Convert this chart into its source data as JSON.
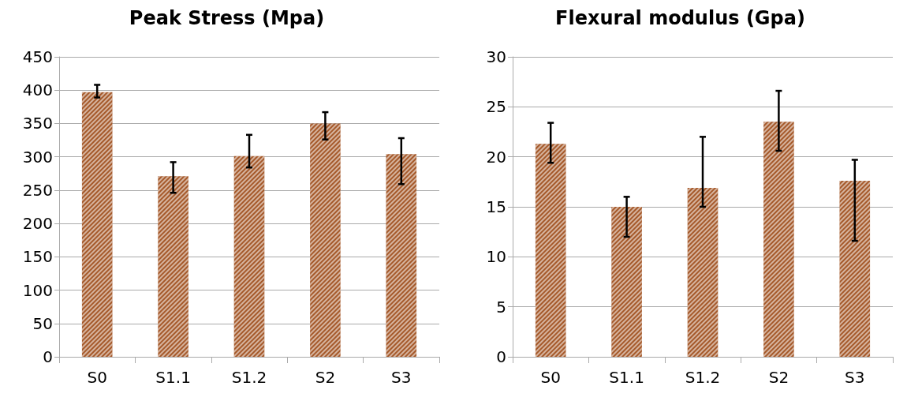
{
  "chart_data": [
    {
      "type": "bar",
      "title": "Peak Stress (Mpa)",
      "categories": [
        "S0",
        "S1.1",
        "S1.2",
        "S2",
        "S3"
      ],
      "series": [
        {
          "color": "#a5592a",
          "values": [
            397,
            271,
            301,
            350,
            304
          ],
          "errors": [
            [
              389,
              408
            ],
            [
              246,
              292
            ],
            [
              284,
              333
            ],
            [
              326,
              367
            ],
            [
              259,
              328
            ]
          ]
        }
      ],
      "ylim": [
        0,
        450
      ],
      "yticks": [
        0,
        50,
        100,
        150,
        200,
        250,
        300,
        350,
        400,
        450
      ],
      "grid": "y"
    },
    {
      "type": "bar",
      "title": "Flexural modulus (Gpa)",
      "categories": [
        "S0",
        "S1.1",
        "S1.2",
        "S2",
        "S3"
      ],
      "series": [
        {
          "color": "#a5592a",
          "values": [
            21.3,
            15.0,
            16.9,
            23.5,
            17.6
          ],
          "errors": [
            [
              19.4,
              23.4
            ],
            [
              12.0,
              16.0
            ],
            [
              15.0,
              22.0
            ],
            [
              20.6,
              26.6
            ],
            [
              11.6,
              19.7
            ]
          ]
        }
      ],
      "ylim": [
        0,
        30
      ],
      "yticks": [
        0,
        5,
        10,
        15,
        20,
        25,
        30
      ],
      "grid": "y"
    }
  ]
}
